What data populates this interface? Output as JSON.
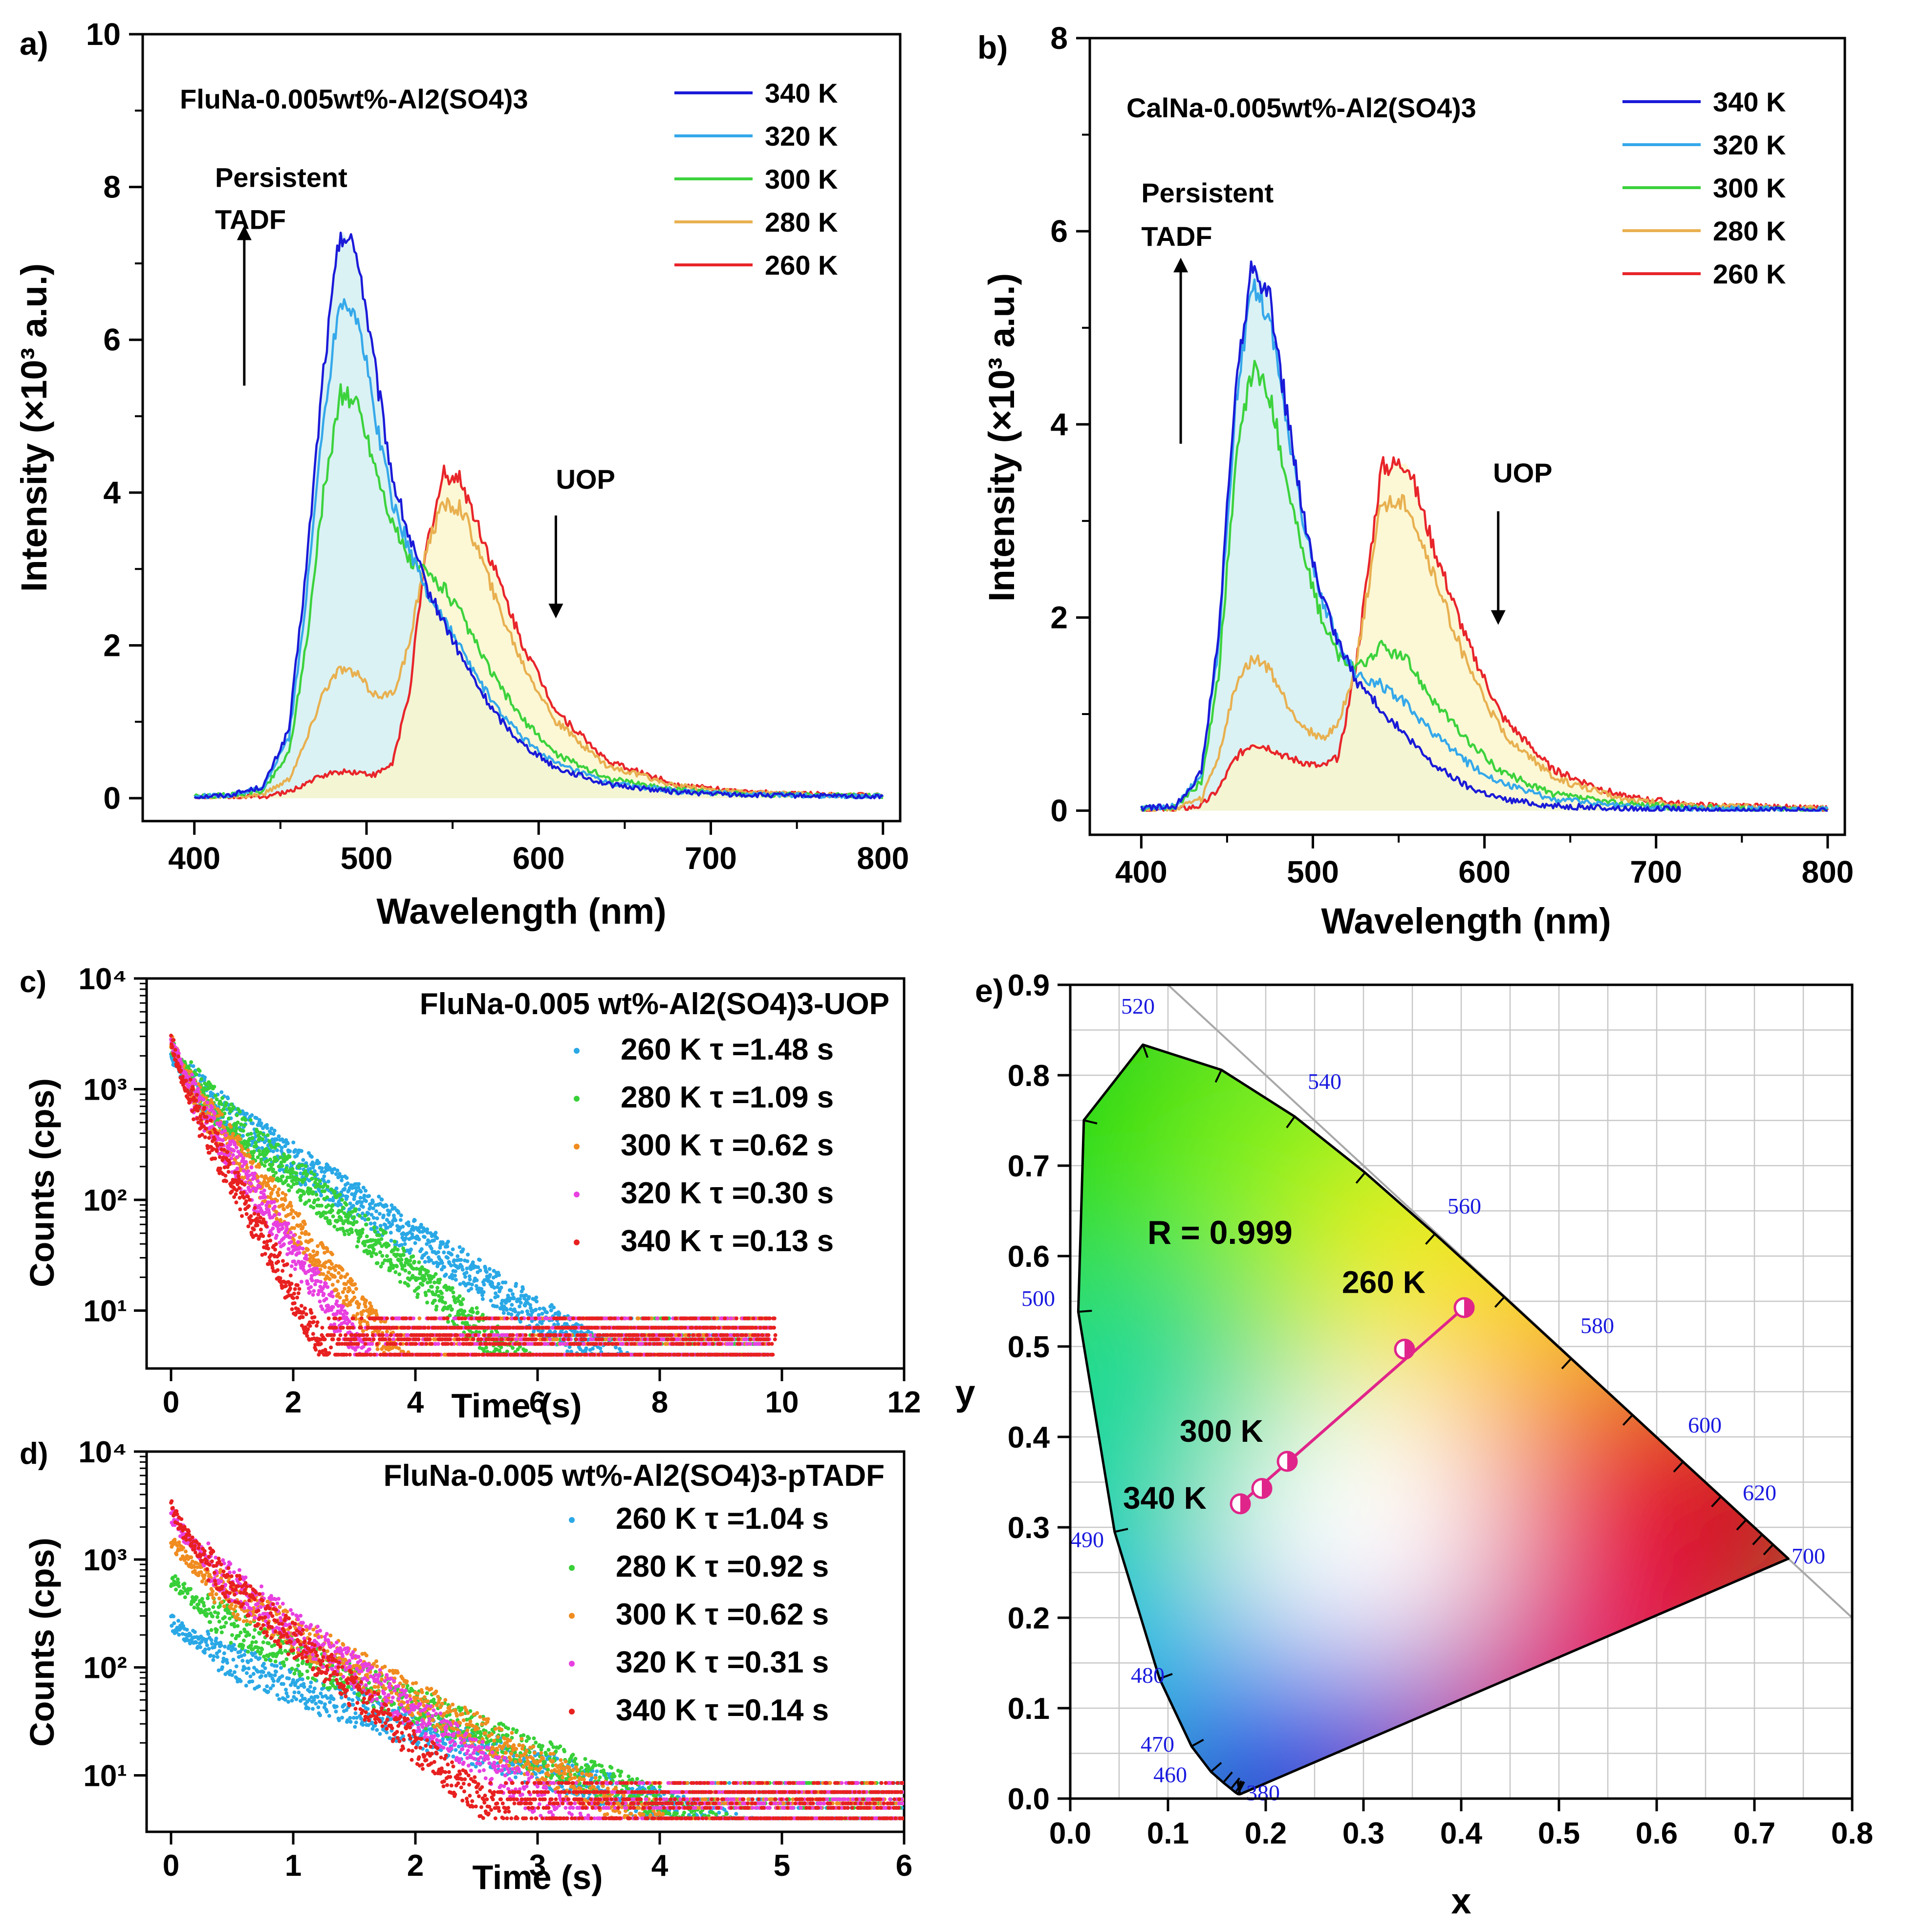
{
  "chart_data": [
    {
      "id": "a",
      "type": "line",
      "panel_label": "a)",
      "title": "FluNa-0.005wt%-Al2(SO4)3",
      "xlabel": "Wavelength (nm)",
      "ylabel": "Intensity (×10³ a.u.)",
      "xlim": [
        370,
        810
      ],
      "ylim": [
        -0.3,
        10
      ],
      "xticks": [
        400,
        500,
        600,
        700,
        800
      ],
      "yticks": [
        0,
        2,
        4,
        6,
        8,
        10
      ],
      "legend_position": "top-right",
      "annotations": [
        {
          "text": "Persistent",
          "x": 412,
          "y": 8.0
        },
        {
          "text": "TADF",
          "x": 412,
          "y": 7.45
        },
        {
          "text": "UOP",
          "x": 610,
          "y": 4.05
        }
      ],
      "arrows": [
        {
          "x": 429,
          "from": 5.4,
          "to": 7.4
        },
        {
          "x": 610,
          "from": 3.7,
          "to": 2.45
        }
      ],
      "series": [
        {
          "name": "340 K",
          "color": "#1a1ad8",
          "x": [
            400,
            420,
            440,
            455,
            465,
            475,
            485,
            495,
            505,
            515,
            525,
            535,
            545,
            555,
            565,
            575,
            590,
            610,
            640,
            680,
            720,
            800
          ],
          "y": [
            0.02,
            0.04,
            0.15,
            0.9,
            3.0,
            5.6,
            7.45,
            7.1,
            5.6,
            4.2,
            3.4,
            2.75,
            2.3,
            1.85,
            1.45,
            1.1,
            0.72,
            0.4,
            0.18,
            0.08,
            0.04,
            0.02
          ]
        },
        {
          "name": "320 K",
          "color": "#35a8ea",
          "x": [
            400,
            420,
            440,
            455,
            465,
            475,
            485,
            495,
            505,
            515,
            525,
            535,
            545,
            555,
            565,
            575,
            590,
            610,
            640,
            680,
            720,
            800
          ],
          "y": [
            0.02,
            0.04,
            0.13,
            0.8,
            2.6,
            5.0,
            6.6,
            6.3,
            5.0,
            3.9,
            3.25,
            2.7,
            2.35,
            1.95,
            1.55,
            1.2,
            0.8,
            0.45,
            0.2,
            0.09,
            0.05,
            0.02
          ]
        },
        {
          "name": "300 K",
          "color": "#3cd23c",
          "x": [
            400,
            420,
            440,
            455,
            465,
            475,
            485,
            495,
            505,
            515,
            525,
            535,
            545,
            555,
            565,
            575,
            590,
            610,
            640,
            680,
            720,
            800
          ],
          "y": [
            0.02,
            0.04,
            0.1,
            0.6,
            2.0,
            4.0,
            5.3,
            5.15,
            4.35,
            3.6,
            3.1,
            2.95,
            2.75,
            2.4,
            1.95,
            1.55,
            1.05,
            0.58,
            0.26,
            0.11,
            0.05,
            0.03
          ]
        },
        {
          "name": "280 K",
          "color": "#e8b050",
          "x": [
            400,
            420,
            440,
            455,
            465,
            475,
            485,
            495,
            505,
            515,
            525,
            535,
            545,
            555,
            565,
            575,
            590,
            610,
            640,
            680,
            720,
            800
          ],
          "y": [
            0.01,
            0.02,
            0.05,
            0.25,
            0.75,
            1.4,
            1.7,
            1.6,
            1.35,
            1.35,
            2.0,
            3.3,
            3.85,
            3.8,
            3.25,
            2.6,
            1.8,
            1.0,
            0.42,
            0.16,
            0.07,
            0.03
          ]
        },
        {
          "name": "260 K",
          "color": "#e8252a",
          "x": [
            400,
            420,
            440,
            455,
            465,
            475,
            485,
            495,
            505,
            515,
            525,
            535,
            545,
            555,
            565,
            575,
            590,
            610,
            640,
            680,
            720,
            800
          ],
          "y": [
            0.0,
            0.01,
            0.02,
            0.08,
            0.2,
            0.3,
            0.35,
            0.34,
            0.3,
            0.45,
            1.4,
            3.3,
            4.25,
            4.15,
            3.55,
            2.95,
            2.05,
            1.15,
            0.48,
            0.18,
            0.08,
            0.03
          ]
        }
      ]
    },
    {
      "id": "b",
      "type": "line",
      "panel_label": "b)",
      "title": "CalNa-0.005wt%-Al2(SO4)3",
      "xlabel": "Wavelength (nm)",
      "ylabel": "Intensity (×10³ a.u.)",
      "xlim": [
        370,
        810
      ],
      "ylim": [
        -0.25,
        8
      ],
      "xticks": [
        400,
        500,
        600,
        700,
        800
      ],
      "yticks": [
        0,
        2,
        4,
        6,
        8
      ],
      "legend_position": "top-right",
      "annotations": [
        {
          "text": "Persistent",
          "x": 400,
          "y": 6.3
        },
        {
          "text": "TADF",
          "x": 400,
          "y": 5.85
        },
        {
          "text": "UOP",
          "x": 605,
          "y": 3.4
        }
      ],
      "arrows": [
        {
          "x": 423,
          "from": 3.8,
          "to": 5.65
        },
        {
          "x": 608,
          "from": 3.1,
          "to": 2.0
        }
      ],
      "series": [
        {
          "name": "340 K",
          "color": "#1a1ad8",
          "x": [
            400,
            420,
            435,
            445,
            455,
            465,
            475,
            485,
            495,
            505,
            515,
            525,
            540,
            555,
            570,
            590,
            610,
            640,
            680,
            720,
            800
          ],
          "y": [
            0.02,
            0.05,
            0.4,
            1.8,
            4.4,
            5.7,
            5.3,
            4.1,
            3.0,
            2.2,
            1.75,
            1.35,
            1.05,
            0.75,
            0.48,
            0.25,
            0.12,
            0.05,
            0.02,
            0.01,
            0.0
          ]
        },
        {
          "name": "320 K",
          "color": "#35a8ea",
          "x": [
            400,
            420,
            435,
            445,
            455,
            465,
            475,
            485,
            495,
            505,
            515,
            525,
            540,
            555,
            570,
            590,
            610,
            640,
            680,
            720,
            800
          ],
          "y": [
            0.02,
            0.05,
            0.38,
            1.7,
            4.2,
            5.5,
            5.1,
            4.0,
            2.95,
            2.2,
            1.75,
            1.4,
            1.3,
            1.1,
            0.8,
            0.5,
            0.28,
            0.12,
            0.05,
            0.02,
            0.01
          ]
        },
        {
          "name": "300 K",
          "color": "#3cd23c",
          "x": [
            400,
            420,
            435,
            445,
            455,
            465,
            475,
            485,
            495,
            505,
            515,
            525,
            540,
            555,
            570,
            590,
            610,
            640,
            680,
            720,
            800
          ],
          "y": [
            0.02,
            0.04,
            0.3,
            1.4,
            3.6,
            4.6,
            4.3,
            3.4,
            2.6,
            2.0,
            1.6,
            1.45,
            1.7,
            1.55,
            1.15,
            0.72,
            0.4,
            0.17,
            0.07,
            0.03,
            0.01
          ]
        },
        {
          "name": "280 K",
          "color": "#e8b050",
          "x": [
            400,
            420,
            435,
            445,
            455,
            465,
            475,
            485,
            495,
            505,
            515,
            525,
            540,
            555,
            570,
            590,
            610,
            640,
            680,
            720,
            800
          ],
          "y": [
            0.01,
            0.02,
            0.12,
            0.55,
            1.3,
            1.6,
            1.45,
            1.1,
            0.85,
            0.75,
            0.9,
            1.5,
            3.2,
            3.2,
            2.45,
            1.5,
            0.82,
            0.34,
            0.12,
            0.05,
            0.02
          ]
        },
        {
          "name": "260 K",
          "color": "#e8252a",
          "x": [
            400,
            420,
            435,
            445,
            455,
            465,
            475,
            485,
            495,
            505,
            515,
            525,
            540,
            555,
            570,
            590,
            610,
            640,
            680,
            720,
            800
          ],
          "y": [
            0.0,
            0.01,
            0.05,
            0.22,
            0.55,
            0.7,
            0.65,
            0.55,
            0.5,
            0.45,
            0.55,
            1.5,
            3.55,
            3.6,
            2.75,
            1.75,
            0.98,
            0.42,
            0.15,
            0.06,
            0.02
          ]
        }
      ]
    },
    {
      "id": "c",
      "type": "scatter",
      "panel_label": "c)",
      "title": "FluNa-0.005 wt%-Al2(SO4)3-UOP",
      "xlabel": "Time (s)",
      "ylabel": "Counts (cps)",
      "xlim": [
        -0.4,
        12
      ],
      "ylim": [
        3,
        10000
      ],
      "yscale": "log",
      "xticks": [
        0,
        2,
        4,
        6,
        8,
        10,
        12
      ],
      "yticks": [
        10,
        100,
        1000,
        10000
      ],
      "ytick_labels": [
        "10¹",
        "10²",
        "10³",
        "10⁴"
      ],
      "legend_position": "top-right",
      "series": [
        {
          "name": "260 K",
          "tau_label": "260 K τ =1.48 s",
          "tau": 1.48,
          "color": "#2aa8e6",
          "y0": 2000,
          "xmax": 9.8
        },
        {
          "name": "280 K",
          "tau_label": "280 K τ =1.09 s",
          "tau": 1.09,
          "color": "#38d038",
          "y0": 2500,
          "xmax": 9.8
        },
        {
          "name": "300 K",
          "tau_label": "300 K τ =0.62 s",
          "tau": 0.62,
          "color": "#f08c20",
          "y0": 2800,
          "xmax": 9.8
        },
        {
          "name": "320 K",
          "tau_label": "320 K τ =0.30 s",
          "tau": 0.3,
          "color": "#e840e0",
          "y0": 3000,
          "xmax": 9.8
        },
        {
          "name": "340 K",
          "tau_label": "340 K τ =0.13 s",
          "tau": 0.13,
          "color": "#e82020",
          "y0": 3000,
          "xmax": 9.9
        }
      ]
    },
    {
      "id": "d",
      "type": "scatter",
      "panel_label": "d)",
      "title": "FluNa-0.005 wt%-Al2(SO4)3-pTADF",
      "xlabel": "Time (s)",
      "ylabel": "Counts (cps)",
      "xlim": [
        -0.2,
        6
      ],
      "ylim": [
        3,
        10000
      ],
      "yscale": "log",
      "xticks": [
        0,
        1,
        2,
        3,
        4,
        5,
        6
      ],
      "yticks": [
        10,
        100,
        1000,
        10000
      ],
      "ytick_labels": [
        "10¹",
        "10²",
        "10³",
        "10⁴"
      ],
      "legend_position": "top-right",
      "series": [
        {
          "name": "260 K",
          "tau_label": "260 K τ =1.04 s",
          "tau": 1.04,
          "color": "#2aa8e6",
          "y0": 260,
          "xmax": 6.0
        },
        {
          "name": "280 K",
          "tau_label": "280 K τ =0.92 s",
          "tau": 0.92,
          "color": "#38d038",
          "y0": 650,
          "xmax": 6.0
        },
        {
          "name": "300 K",
          "tau_label": "300 K τ =0.62 s",
          "tau": 0.62,
          "color": "#f08c20",
          "y0": 1500,
          "xmax": 6.0
        },
        {
          "name": "320 K",
          "tau_label": "320 K τ =0.31 s",
          "tau": 0.31,
          "color": "#e840e0",
          "y0": 2600,
          "xmax": 6.0
        },
        {
          "name": "340 K",
          "tau_label": "340 K τ =0.14 s",
          "tau": 0.14,
          "color": "#e82020",
          "y0": 3000,
          "xmax": 6.0
        }
      ]
    },
    {
      "id": "e",
      "type": "scatter",
      "panel_label": "e)",
      "title": "",
      "xlabel": "x",
      "ylabel": "y",
      "xlim": [
        0,
        0.8
      ],
      "ylim": [
        0,
        0.9
      ],
      "xticks": [
        0.0,
        0.1,
        0.2,
        0.3,
        0.4,
        0.5,
        0.6,
        0.7,
        0.8
      ],
      "yticks": [
        0.0,
        0.1,
        0.2,
        0.3,
        0.4,
        0.5,
        0.6,
        0.7,
        0.8,
        0.9
      ],
      "grid": true,
      "annotation": "R = 0.999",
      "points": [
        {
          "label": "260 K",
          "x": 0.403,
          "y": 0.543
        },
        {
          "label": "",
          "x": 0.342,
          "y": 0.497
        },
        {
          "label": "300 K",
          "x": 0.222,
          "y": 0.373
        },
        {
          "label": "",
          "x": 0.196,
          "y": 0.343
        },
        {
          "label": "340 K",
          "x": 0.174,
          "y": 0.326
        }
      ],
      "fit_line_color": "#e0258a",
      "locus": [
        [
          0.1741,
          0.005
        ],
        [
          0.1738,
          0.0049
        ],
        [
          0.1736,
          0.0049
        ],
        [
          0.1733,
          0.0048
        ],
        [
          0.1726,
          0.0048
        ],
        [
          0.1714,
          0.0051
        ],
        [
          0.1689,
          0.0069
        ],
        [
          0.1644,
          0.0109
        ],
        [
          0.1566,
          0.0177
        ],
        [
          0.144,
          0.0297
        ],
        [
          0.1241,
          0.0578
        ],
        [
          0.0913,
          0.1327
        ],
        [
          0.0454,
          0.295
        ],
        [
          0.0082,
          0.5384
        ],
        [
          0.0139,
          0.7502
        ],
        [
          0.0743,
          0.8338
        ],
        [
          0.1547,
          0.8059
        ],
        [
          0.2296,
          0.7543
        ],
        [
          0.3016,
          0.6923
        ],
        [
          0.3731,
          0.6245
        ],
        [
          0.4441,
          0.5547
        ],
        [
          0.5125,
          0.4866
        ],
        [
          0.5752,
          0.4242
        ],
        [
          0.627,
          0.3725
        ],
        [
          0.6658,
          0.334
        ],
        [
          0.6915,
          0.3083
        ],
        [
          0.7079,
          0.292
        ],
        [
          0.719,
          0.2809
        ],
        [
          0.7347,
          0.2653
        ]
      ],
      "wavelength_labels": [
        {
          "nm": "380",
          "x": 0.18,
          "y": -0.002
        },
        {
          "nm": "460",
          "x": 0.085,
          "y": 0.018
        },
        {
          "nm": "470",
          "x": 0.072,
          "y": 0.052
        },
        {
          "nm": "480",
          "x": 0.062,
          "y": 0.128
        },
        {
          "nm": "490",
          "x": 0.0,
          "y": 0.278
        },
        {
          "nm": "500",
          "x": -0.05,
          "y": 0.545
        },
        {
          "nm": "520",
          "x": 0.052,
          "y": 0.868
        },
        {
          "nm": "540",
          "x": 0.243,
          "y": 0.785
        },
        {
          "nm": "560",
          "x": 0.386,
          "y": 0.647
        },
        {
          "nm": "580",
          "x": 0.522,
          "y": 0.515
        },
        {
          "nm": "600",
          "x": 0.632,
          "y": 0.405
        },
        {
          "nm": "620",
          "x": 0.688,
          "y": 0.33
        },
        {
          "nm": "700",
          "x": 0.738,
          "y": 0.26
        }
      ]
    }
  ]
}
